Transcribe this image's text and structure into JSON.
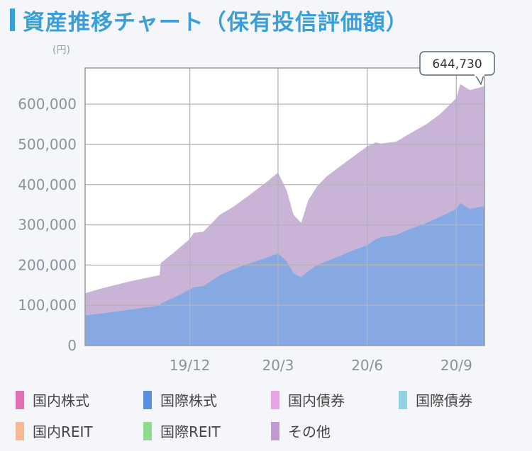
{
  "header": {
    "title": "資産推移チャート（保有投信評価額）",
    "unit": "(円)"
  },
  "chart_data": {
    "type": "area",
    "stacked": true,
    "yticks": [
      "0",
      "100,000",
      "200,000",
      "300,000",
      "400,000",
      "500,000",
      "600,000"
    ],
    "ylim": [
      0,
      690000
    ],
    "xticks": [
      {
        "label": "19/12",
        "x": "2019-12-01"
      },
      {
        "label": "20/3",
        "x": "2020-03-01"
      },
      {
        "label": "20/6",
        "x": "2020-06-01"
      },
      {
        "label": "20/9",
        "x": "2020-09-01"
      }
    ],
    "xlim": [
      "2019-08-15",
      "2020-09-30"
    ],
    "grid": true,
    "callout": "644,730",
    "x": [
      "2019-08-15",
      "2019-09-01",
      "2019-10-01",
      "2019-10-31",
      "2019-11-01",
      "2019-11-15",
      "2019-12-01",
      "2019-12-05",
      "2019-12-15",
      "2020-01-01",
      "2020-01-15",
      "2020-02-01",
      "2020-02-20",
      "2020-03-01",
      "2020-03-10",
      "2020-03-17",
      "2020-03-25",
      "2020-04-01",
      "2020-04-10",
      "2020-04-20",
      "2020-05-01",
      "2020-05-15",
      "2020-06-01",
      "2020-06-10",
      "2020-06-15",
      "2020-07-01",
      "2020-07-15",
      "2020-08-01",
      "2020-08-15",
      "2020-09-01",
      "2020-09-05",
      "2020-09-15",
      "2020-09-30"
    ],
    "series": [
      {
        "name": "国際株式",
        "color": "#86a8e3",
        "values": [
          75000,
          80000,
          90000,
          100000,
          105000,
          120000,
          140000,
          145000,
          148000,
          175000,
          190000,
          205000,
          220000,
          230000,
          210000,
          180000,
          170000,
          185000,
          200000,
          210000,
          220000,
          235000,
          250000,
          265000,
          270000,
          275000,
          290000,
          305000,
          320000,
          340000,
          355000,
          340000,
          347000
        ]
      },
      {
        "name": "その他",
        "color": "#c9b3d6",
        "values": [
          55000,
          62000,
          70000,
          75000,
          100000,
          112000,
          125000,
          135000,
          135000,
          150000,
          155000,
          170000,
          190000,
          200000,
          175000,
          145000,
          135000,
          175000,
          195000,
          210000,
          220000,
          230000,
          245000,
          240000,
          232000,
          232000,
          237000,
          245000,
          255000,
          275000,
          295000,
          295000,
          297730
        ]
      }
    ],
    "legend": [
      {
        "label": "国内株式",
        "color": "#e070b4"
      },
      {
        "label": "国際株式",
        "color": "#5b8ee0"
      },
      {
        "label": "国内債券",
        "color": "#e6a6e6"
      },
      {
        "label": "国際債券",
        "color": "#92d2e0"
      },
      {
        "label": "国内REIT",
        "color": "#f8b894"
      },
      {
        "label": "国際REIT",
        "color": "#8fdc8f"
      },
      {
        "label": "その他",
        "color": "#c09ad0"
      }
    ]
  }
}
